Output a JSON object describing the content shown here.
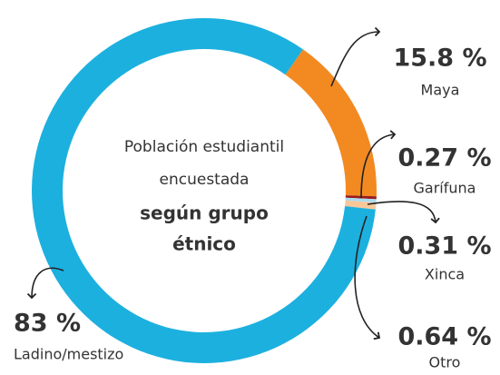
{
  "chart_data": {
    "type": "pie",
    "center_text": [
      "Población estudiantil",
      "encuestada",
      "según grupo",
      "étnico"
    ],
    "categories": [
      "Maya",
      "Garífuna",
      "Xinca",
      "Otro",
      "Ladino/mestizo"
    ],
    "values": [
      15.8,
      0.27,
      0.31,
      0.64,
      83
    ],
    "value_labels": [
      "15.8 %",
      "0.27 %",
      "0.31 %",
      "0.64 %",
      "83 %"
    ],
    "colors": [
      "#f28a21",
      "#9b1b1f",
      "#a8dcf0",
      "#f7c79a",
      "#1cb0df"
    ]
  }
}
